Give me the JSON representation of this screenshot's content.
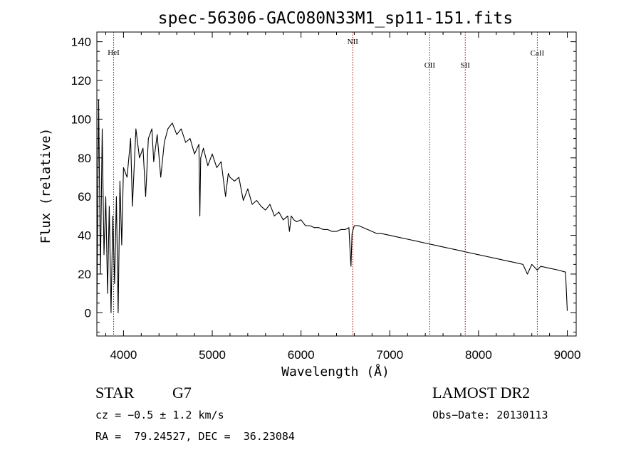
{
  "chart_data": {
    "type": "line",
    "title": "spec-56306-GAC080N33M1_sp11-151.fits",
    "xlabel": "Wavelength (Å)",
    "ylabel": "Flux (relative)",
    "xlim": [
      3700,
      9100
    ],
    "ylim": [
      -12,
      145
    ],
    "xticks": [
      4000,
      5000,
      6000,
      7000,
      8000,
      9000
    ],
    "yticks": [
      0,
      20,
      40,
      60,
      80,
      100,
      120,
      140
    ],
    "series": [
      {
        "name": "spectrum",
        "x": [
          3700,
          3720,
          3740,
          3760,
          3780,
          3800,
          3820,
          3840,
          3860,
          3880,
          3900,
          3920,
          3940,
          3960,
          3980,
          4000,
          4040,
          4080,
          4100,
          4140,
          4180,
          4220,
          4250,
          4280,
          4320,
          4340,
          4380,
          4420,
          4460,
          4500,
          4550,
          4600,
          4650,
          4700,
          4750,
          4800,
          4850,
          4860,
          4870,
          4900,
          4950,
          5000,
          5050,
          5100,
          5150,
          5180,
          5200,
          5250,
          5300,
          5350,
          5400,
          5450,
          5500,
          5550,
          5600,
          5650,
          5700,
          5750,
          5800,
          5850,
          5870,
          5890,
          5920,
          5950,
          6000,
          6050,
          6100,
          6150,
          6200,
          6250,
          6300,
          6350,
          6400,
          6450,
          6500,
          6540,
          6555,
          6563,
          6575,
          6600,
          6650,
          6700,
          6750,
          6800,
          6850,
          6900,
          7000,
          7100,
          7200,
          7300,
          7400,
          7500,
          7600,
          7700,
          7800,
          7900,
          8000,
          8100,
          8200,
          8300,
          8400,
          8500,
          8550,
          8600,
          8662,
          8700,
          8800,
          8900,
          8980,
          9000
        ],
        "values": [
          0,
          110,
          20,
          95,
          30,
          60,
          10,
          55,
          0,
          50,
          15,
          60,
          0,
          68,
          35,
          75,
          70,
          90,
          55,
          95,
          80,
          85,
          60,
          90,
          95,
          78,
          92,
          70,
          88,
          95,
          98,
          92,
          95,
          88,
          90,
          82,
          87,
          50,
          80,
          85,
          76,
          82,
          75,
          78,
          60,
          72,
          70,
          68,
          70,
          58,
          64,
          56,
          58,
          55,
          53,
          56,
          50,
          52,
          48,
          50,
          42,
          50,
          48,
          47,
          48,
          45,
          45,
          44,
          44,
          43,
          43,
          42,
          42,
          43,
          43,
          44,
          30,
          24,
          41,
          45,
          45,
          44,
          43,
          42,
          41,
          41,
          40,
          39,
          38,
          37,
          36,
          35,
          34,
          33,
          32,
          31,
          30,
          29,
          28,
          27,
          26,
          25,
          20,
          25,
          22,
          24,
          23,
          22,
          21,
          1
        ]
      }
    ],
    "lines": [
      {
        "label": "HeI",
        "x": 3889
      },
      {
        "label": "NII",
        "x": 6583
      },
      {
        "label": "OII",
        "x": 7450
      },
      {
        "label": "SII",
        "x": 7850
      },
      {
        "label": "CaII",
        "x": 8662
      }
    ]
  },
  "info": {
    "object_type": "STAR",
    "subclass": "G7",
    "survey": "LAMOST DR2",
    "cz": "cz = −0.5 ± 1.2 km/s",
    "obs_date": "Obs−Date: 20130113",
    "coords": "RA =  79.24527, DEC =  36.23084"
  },
  "colors": {
    "line_marker": "#a00000",
    "spectrum": "#000000"
  }
}
